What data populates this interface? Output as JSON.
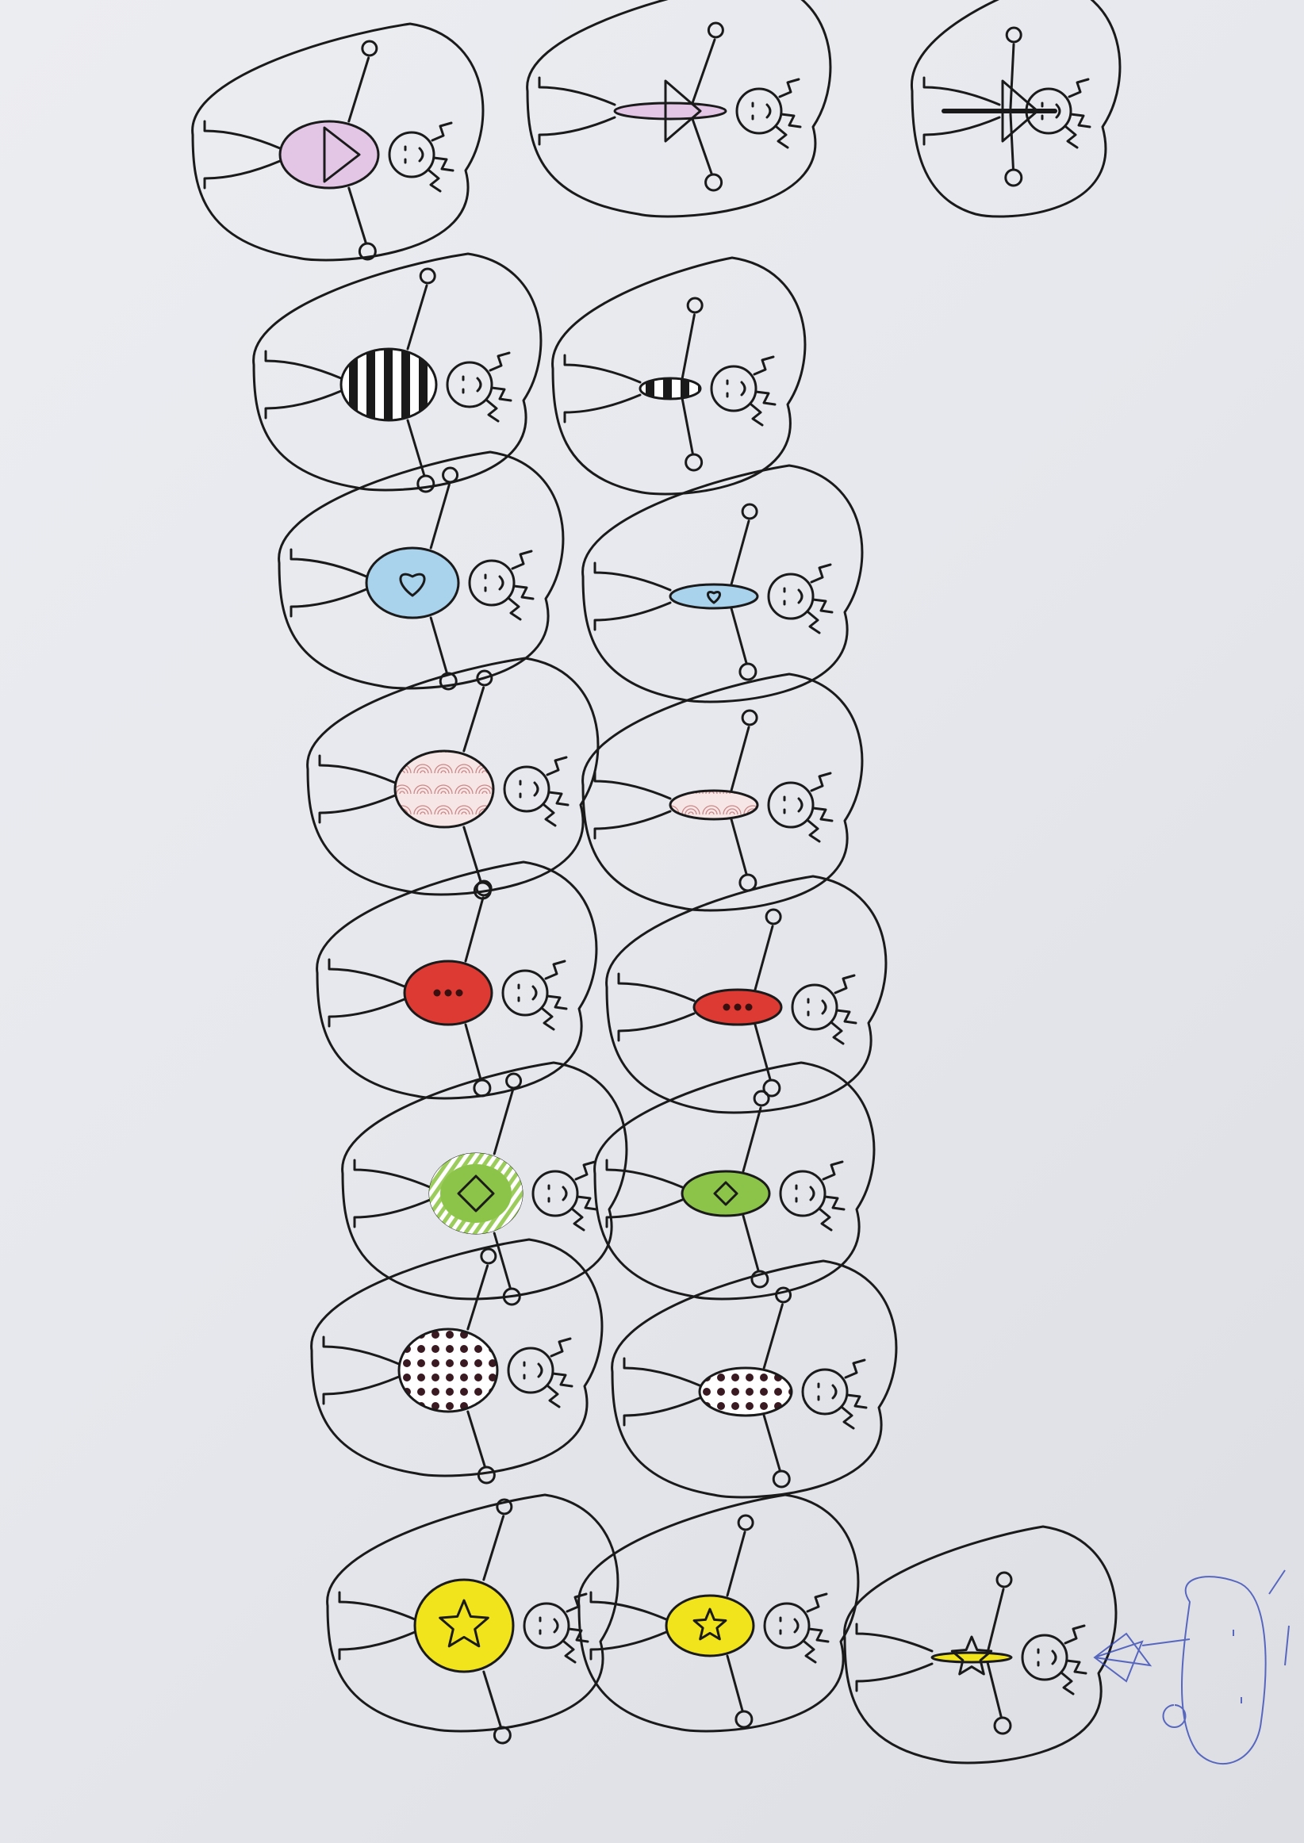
{
  "photo": {
    "subject": "paper-with-stick-figure-cutouts",
    "paper_color": "#e8e9ee"
  },
  "body_colors": {
    "lilac": "#e3c6e6",
    "black": "#1a1a1a",
    "light_blue": "#a9d3ec",
    "pale_pink": "#f3dede",
    "red": "#dc3a32",
    "green": "#8cc449",
    "white": "#ffffff",
    "yellow": "#f1e41c",
    "magenta": "#c23d9c",
    "heart_yellow": "#f6e43a",
    "pen_blue": "#2b3fb0"
  },
  "rows": [
    {
      "pattern": "triangle",
      "color": "lilac",
      "count": 3
    },
    {
      "pattern": "stripes",
      "color": "black",
      "count": 2
    },
    {
      "pattern": "heart",
      "color": "light_blue",
      "count": 2
    },
    {
      "pattern": "swirl",
      "color": "pale_pink",
      "count": 2
    },
    {
      "pattern": "three-dots",
      "color": "red",
      "count": 2
    },
    {
      "pattern": "diamond",
      "color": "green",
      "count": 2
    },
    {
      "pattern": "polka-dots",
      "color": "white",
      "count": 2
    },
    {
      "pattern": "star",
      "color": "yellow",
      "count": 3
    }
  ]
}
